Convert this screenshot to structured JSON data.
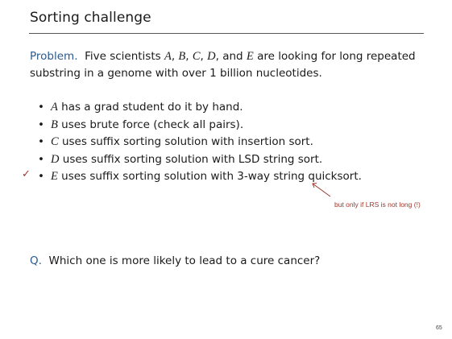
{
  "title": "Sorting challenge",
  "problem": {
    "label": "Problem.",
    "text_1": "Five scientists",
    "var_a": "A",
    "var_b": "B",
    "var_c": "C",
    "var_d": "D",
    "and": "and",
    "var_e": "E",
    "text_2": "are looking for long repeated substring in a genome with over 1 billion nucleotides."
  },
  "bullets": [
    {
      "var": "A",
      "text": "has a grad student do it by hand."
    },
    {
      "var": "B",
      "text": "uses brute force (check all pairs)."
    },
    {
      "var": "C",
      "text": "uses suffix sorting solution with insertion sort."
    },
    {
      "var": "D",
      "text": "uses suffix sorting solution with LSD string sort."
    },
    {
      "var": "E",
      "text": "uses suffix sorting solution with 3-way string quicksort."
    }
  ],
  "bullet_glyph": "•",
  "checkmark": "✓",
  "annotation": "but only if LRS is not long (!)",
  "question": {
    "label": "Q.",
    "text": "Which one is more likely to lead to a cure cancer?"
  },
  "page_number": "65",
  "colors": {
    "accent_blue": "#2c5a8e",
    "accent_red": "#a0362b"
  }
}
